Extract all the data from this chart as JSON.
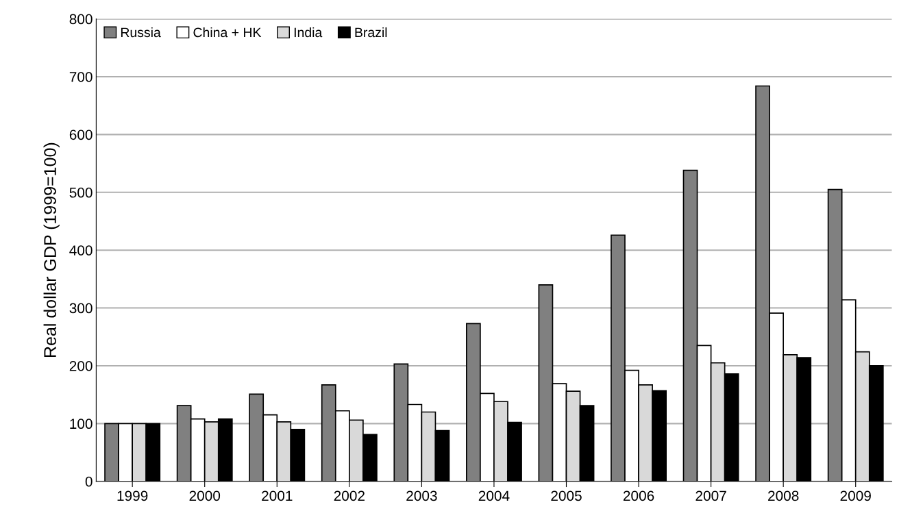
{
  "chart_data": {
    "type": "bar",
    "ylabel": "Real dollar GDP (1999=100)",
    "categories": [
      "1999",
      "2000",
      "2001",
      "2002",
      "2003",
      "2004",
      "2005",
      "2006",
      "2007",
      "2008",
      "2009"
    ],
    "series": [
      {
        "name": "Russia",
        "color": "#808080",
        "values": [
          100,
          131,
          151,
          167,
          203,
          273,
          340,
          426,
          538,
          684,
          505
        ]
      },
      {
        "name": "China + HK",
        "color": "#ffffff",
        "values": [
          100,
          108,
          115,
          122,
          133,
          152,
          169,
          192,
          235,
          291,
          314
        ]
      },
      {
        "name": "India",
        "color": "#d9d9d9",
        "values": [
          100,
          103,
          103,
          106,
          120,
          138,
          156,
          167,
          205,
          219,
          224
        ]
      },
      {
        "name": "Brazil",
        "color": "#000000",
        "values": [
          100,
          108,
          90,
          81,
          88,
          102,
          131,
          157,
          186,
          214,
          200
        ]
      }
    ],
    "ylim": [
      0,
      800
    ],
    "yticks": [
      0,
      100,
      200,
      300,
      400,
      500,
      600,
      700,
      800
    ],
    "grid": "y",
    "legend": "top left"
  }
}
